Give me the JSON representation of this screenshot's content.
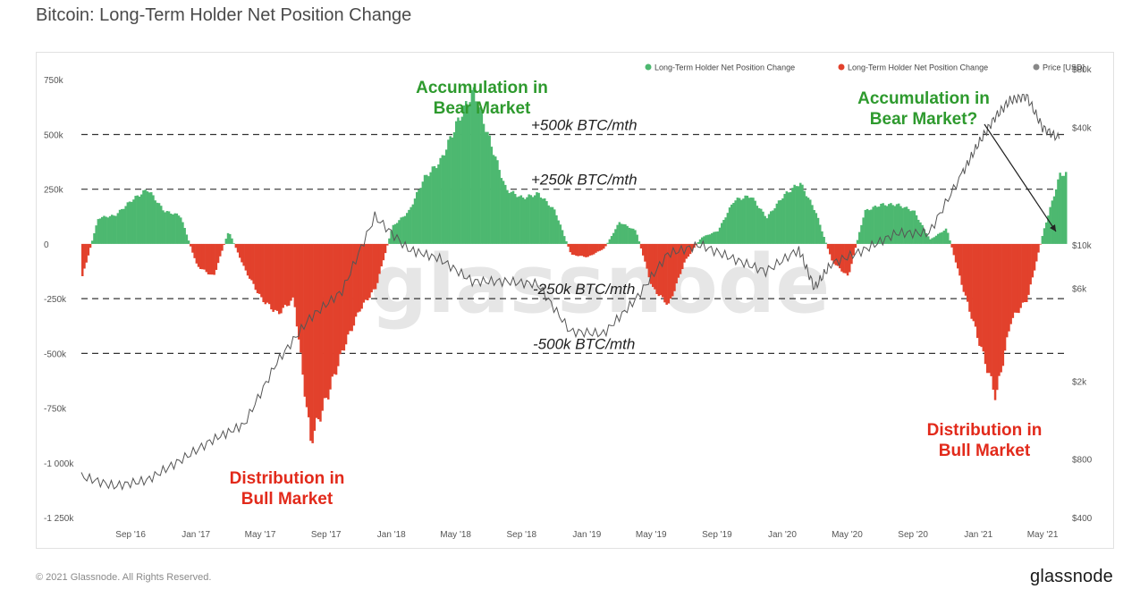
{
  "title": "Bitcoin: Long-Term Holder Net Position Change",
  "footer": {
    "copyright": "© 2021 Glassnode. All Rights Reserved.",
    "logo": "glassnode"
  },
  "watermark": "glassnode",
  "colors": {
    "positive": "#4db870",
    "negative": "#e2412c",
    "price": "#555555",
    "green_text": "#2e9a2e",
    "red_text": "#e22a1b"
  },
  "legend": [
    {
      "label": "Long-Term Holder Net Position Change",
      "color": "#4db870"
    },
    {
      "label": "Long-Term Holder Net Position Change",
      "color": "#e2412c"
    },
    {
      "label": "Price [USD]",
      "color": "#888888"
    }
  ],
  "annotations": {
    "accum_bear_1": [
      "Accumulation in",
      "Bear Market"
    ],
    "accum_bear_2": [
      "Accumulation in",
      "Bear Market?"
    ],
    "distrib_bull_1": [
      "Distribution in",
      "Bull Market"
    ],
    "distrib_bull_2": [
      "Distribution in",
      "Bull Market"
    ],
    "thresholds": [
      "+500k BTC/mth",
      "+250k BTC/mth",
      "-250k BTC/mth",
      "-500k BTC/mth"
    ]
  },
  "chart_data": {
    "type": "area",
    "ylim_left": [
      -1250000,
      800000
    ],
    "y_left_ticks": [
      "750k",
      "500k",
      "250k",
      "0",
      "-250k",
      "-500k",
      "-750k",
      "-1 000k",
      "-1 250k"
    ],
    "y_left_tick_values": [
      750000,
      500000,
      250000,
      0,
      -250000,
      -500000,
      -750000,
      -1000000,
      -1250000
    ],
    "y_right_ticks": [
      "$80k",
      "$40k",
      "$10k",
      "$6k",
      "$2k",
      "$800",
      "$400"
    ],
    "y_right_tick_values": [
      80000,
      40000,
      10000,
      6000,
      2000,
      800,
      400
    ],
    "y_right_scale": "log",
    "x_ticks": [
      "Sep '16",
      "Jan '17",
      "May '17",
      "Sep '17",
      "Jan '18",
      "May '18",
      "Sep '18",
      "Jan '19",
      "May '19",
      "Sep '19",
      "Jan '20",
      "May '20",
      "Sep '20",
      "Jan '21",
      "May '21"
    ],
    "x_range": [
      "2016-06",
      "2021-06"
    ],
    "reference_lines": [
      500000,
      250000,
      -250000,
      -500000
    ],
    "series": [
      {
        "name": "Long-Term Holder Net Position Change",
        "x": [
          "2016-06",
          "2016-07",
          "2016-08",
          "2016-09",
          "2016-10",
          "2016-11",
          "2016-12",
          "2017-01",
          "2017-02",
          "2017-03",
          "2017-04",
          "2017-05",
          "2017-06",
          "2017-07",
          "2017-08",
          "2017-09",
          "2017-10",
          "2017-11",
          "2017-12",
          "2018-01",
          "2018-02",
          "2018-03",
          "2018-04",
          "2018-05",
          "2018-06",
          "2018-07",
          "2018-08",
          "2018-09",
          "2018-10",
          "2018-11",
          "2018-12",
          "2019-01",
          "2019-02",
          "2019-03",
          "2019-04",
          "2019-05",
          "2019-06",
          "2019-07",
          "2019-08",
          "2019-09",
          "2019-10",
          "2019-11",
          "2019-12",
          "2020-01",
          "2020-02",
          "2020-03",
          "2020-04",
          "2020-05",
          "2020-06",
          "2020-07",
          "2020-08",
          "2020-09",
          "2020-10",
          "2020-11",
          "2020-12",
          "2021-01",
          "2021-02",
          "2021-03",
          "2021-04",
          "2021-05",
          "2021-06"
        ],
        "values": [
          -150000,
          120000,
          130000,
          200000,
          250000,
          150000,
          130000,
          -100000,
          -150000,
          60000,
          -120000,
          -250000,
          -320000,
          -250000,
          -900000,
          -700000,
          -480000,
          -300000,
          -200000,
          80000,
          150000,
          300000,
          380000,
          550000,
          700000,
          480000,
          250000,
          210000,
          230000,
          150000,
          -50000,
          -60000,
          -20000,
          100000,
          60000,
          -200000,
          -280000,
          -80000,
          30000,
          60000,
          200000,
          220000,
          120000,
          220000,
          280000,
          150000,
          -80000,
          -150000,
          150000,
          180000,
          180000,
          150000,
          20000,
          70000,
          -200000,
          -450000,
          -700000,
          -350000,
          -250000,
          60000,
          320000
        ]
      },
      {
        "name": "Price [USD]",
        "x": [
          "2016-06",
          "2016-08",
          "2016-10",
          "2016-12",
          "2017-02",
          "2017-04",
          "2017-06",
          "2017-08",
          "2017-10",
          "2017-12",
          "2018-02",
          "2018-04",
          "2018-06",
          "2018-08",
          "2018-10",
          "2018-12",
          "2019-02",
          "2019-04",
          "2019-06",
          "2019-08",
          "2019-10",
          "2019-12",
          "2020-02",
          "2020-03",
          "2020-04",
          "2020-06",
          "2020-08",
          "2020-10",
          "2020-12",
          "2021-01",
          "2021-02",
          "2021-03",
          "2021-04",
          "2021-05",
          "2021-06"
        ],
        "values": [
          650,
          580,
          620,
          780,
          1000,
          1200,
          2500,
          4200,
          5800,
          14000,
          9500,
          8500,
          6500,
          6500,
          6300,
          3600,
          3500,
          5200,
          9000,
          10000,
          8500,
          7300,
          9500,
          6000,
          8000,
          9400,
          11500,
          11500,
          23000,
          33000,
          45000,
          55000,
          58000,
          40000,
          35000
        ]
      }
    ]
  }
}
